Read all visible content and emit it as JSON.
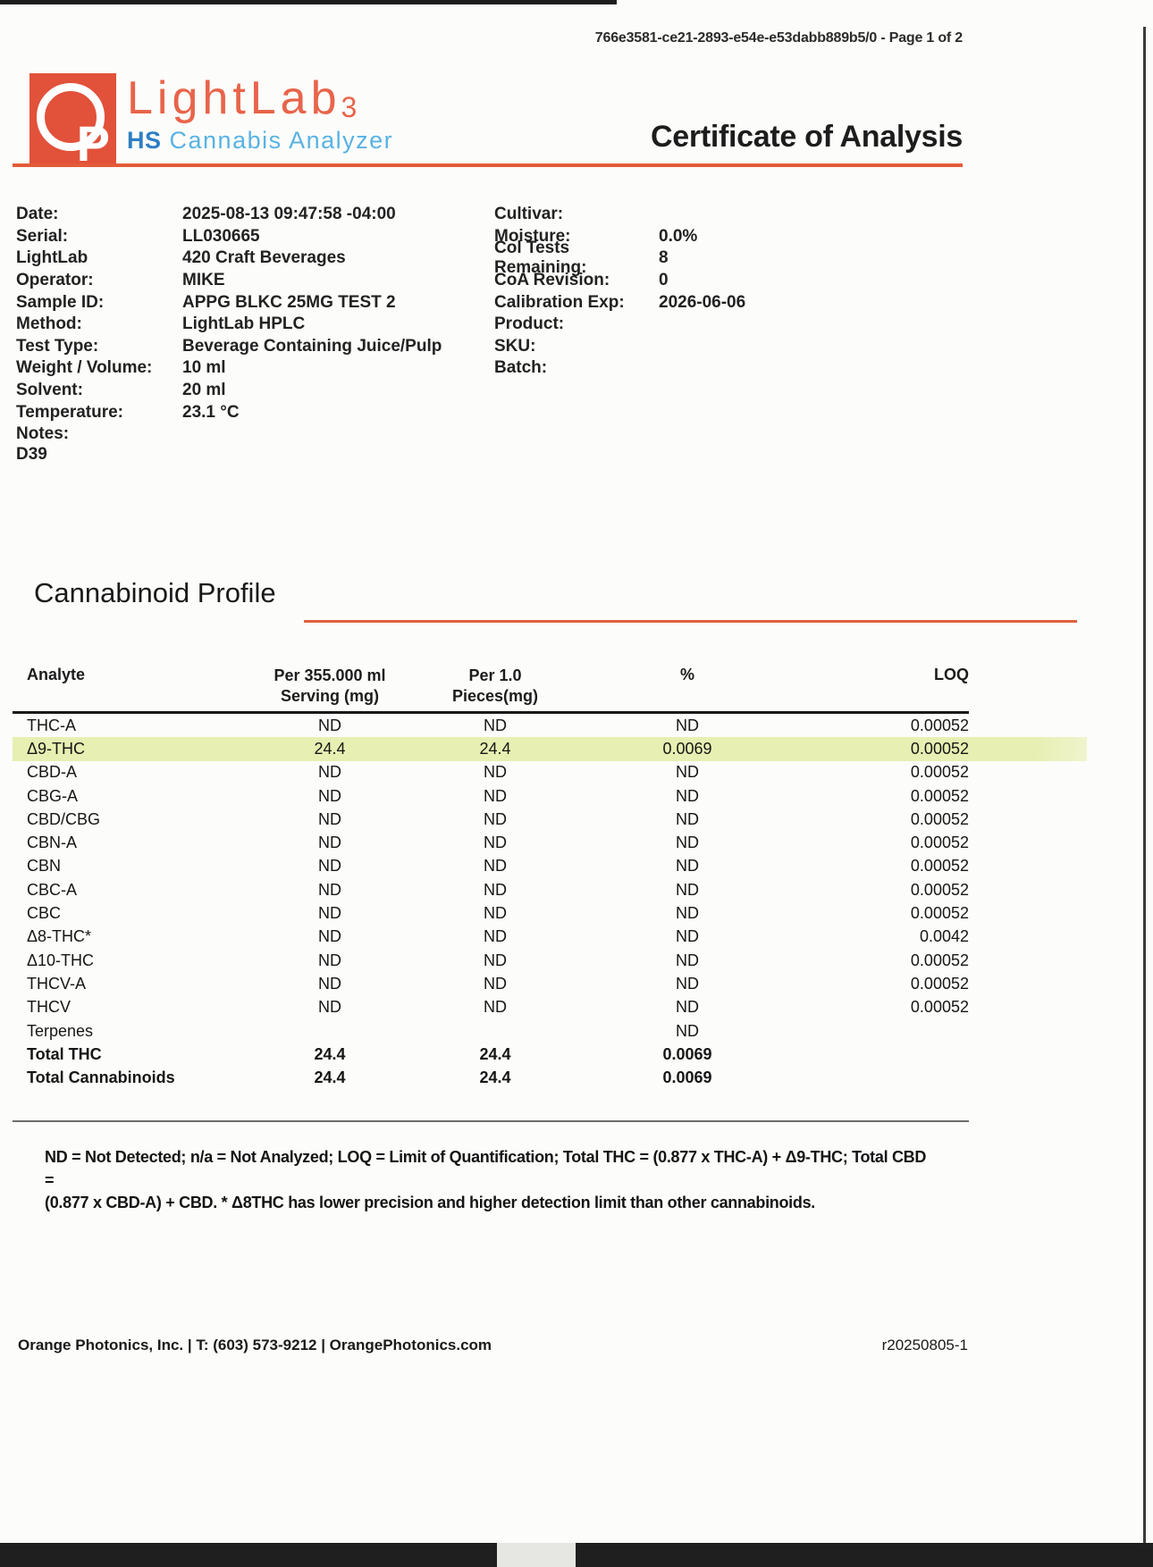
{
  "header": {
    "doc_ref": "766e3581-ce21-2893-e54e-e53dabb889b5/0 - Page 1 of 2",
    "title": "Certificate of Analysis"
  },
  "logo": {
    "brand": "LightLab",
    "model": "3",
    "monogram_p": "P",
    "line2_prefix": "HS",
    "line2_name": "Cannabis Analyzer",
    "colors": {
      "orange_square": "#e2513a",
      "brand_orange": "#e8644a",
      "rule_orange": "#e45a39",
      "hs_blue": "#2d7fc3",
      "analyzer_blue": "#58b2e4",
      "highlight_row": "#e7efb2"
    }
  },
  "meta_left": [
    {
      "label": "Date:",
      "value": "2025-08-13 09:47:58 -04:00"
    },
    {
      "label": "Serial:",
      "value": "LL030665"
    },
    {
      "label": "LightLab",
      "value": "420 Craft Beverages"
    },
    {
      "label": "Operator:",
      "value": "MIKE"
    },
    {
      "label": "Sample ID:",
      "value": "APPG BLKC 25MG TEST 2"
    },
    {
      "label": "Method:",
      "value": "LightLab HPLC"
    },
    {
      "label": "Test Type:",
      "value": "Beverage Containing Juice/Pulp"
    },
    {
      "label": "Weight / Volume:",
      "value": "10 ml"
    },
    {
      "label": "Solvent:",
      "value": "20 ml"
    },
    {
      "label": "Temperature:",
      "value": "23.1 °C"
    },
    {
      "label": "Notes:",
      "value": ""
    }
  ],
  "notes_value": "D39",
  "meta_right": [
    {
      "label": "Cultivar:",
      "value": ""
    },
    {
      "label": "Moisture:",
      "value": "0.0%"
    },
    {
      "label": "Col Tests Remaining:",
      "value": "8"
    },
    {
      "label": "CoA Revision:",
      "value": "0"
    },
    {
      "label": "Calibration Exp:",
      "value": "2026-06-06"
    },
    {
      "label": "Product:",
      "value": ""
    },
    {
      "label": "SKU:",
      "value": ""
    },
    {
      "label": "Batch:",
      "value": ""
    }
  ],
  "section_title": "Cannabinoid Profile",
  "table": {
    "headers": {
      "analyte": "Analyte",
      "serving_l1": "Per 355.000 ml",
      "serving_l2": "Serving (mg)",
      "pieces_l1": "Per 1.0",
      "pieces_l2": "Pieces(mg)",
      "percent": "%",
      "loq": "LOQ"
    },
    "rows": [
      {
        "analyte": "THC-A",
        "serving": "ND",
        "pieces": "ND",
        "percent": "ND",
        "loq": "0.00052",
        "highlight": false,
        "bold": false
      },
      {
        "analyte": "Δ9-THC",
        "serving": "24.4",
        "pieces": "24.4",
        "percent": "0.0069",
        "loq": "0.00052",
        "highlight": true,
        "bold": false
      },
      {
        "analyte": "CBD-A",
        "serving": "ND",
        "pieces": "ND",
        "percent": "ND",
        "loq": "0.00052",
        "highlight": false,
        "bold": false
      },
      {
        "analyte": "CBG-A",
        "serving": "ND",
        "pieces": "ND",
        "percent": "ND",
        "loq": "0.00052",
        "highlight": false,
        "bold": false
      },
      {
        "analyte": "CBD/CBG",
        "serving": "ND",
        "pieces": "ND",
        "percent": "ND",
        "loq": "0.00052",
        "highlight": false,
        "bold": false
      },
      {
        "analyte": "CBN-A",
        "serving": "ND",
        "pieces": "ND",
        "percent": "ND",
        "loq": "0.00052",
        "highlight": false,
        "bold": false
      },
      {
        "analyte": "CBN",
        "serving": "ND",
        "pieces": "ND",
        "percent": "ND",
        "loq": "0.00052",
        "highlight": false,
        "bold": false
      },
      {
        "analyte": "CBC-A",
        "serving": "ND",
        "pieces": "ND",
        "percent": "ND",
        "loq": "0.00052",
        "highlight": false,
        "bold": false
      },
      {
        "analyte": "CBC",
        "serving": "ND",
        "pieces": "ND",
        "percent": "ND",
        "loq": "0.00052",
        "highlight": false,
        "bold": false
      },
      {
        "analyte": "Δ8-THC*",
        "serving": "ND",
        "pieces": "ND",
        "percent": "ND",
        "loq": "0.0042",
        "highlight": false,
        "bold": false
      },
      {
        "analyte": "Δ10-THC",
        "serving": "ND",
        "pieces": "ND",
        "percent": "ND",
        "loq": "0.00052",
        "highlight": false,
        "bold": false
      },
      {
        "analyte": "THCV-A",
        "serving": "ND",
        "pieces": "ND",
        "percent": "ND",
        "loq": "0.00052",
        "highlight": false,
        "bold": false
      },
      {
        "analyte": "THCV",
        "serving": "ND",
        "pieces": "ND",
        "percent": "ND",
        "loq": "0.00052",
        "highlight": false,
        "bold": false
      },
      {
        "analyte": "Terpenes",
        "serving": "",
        "pieces": "",
        "percent": "ND",
        "loq": "",
        "highlight": false,
        "bold": false
      },
      {
        "analyte": "Total THC",
        "serving": "24.4",
        "pieces": "24.4",
        "percent": "0.0069",
        "loq": "",
        "highlight": false,
        "bold": true
      },
      {
        "analyte": "Total Cannabinoids",
        "serving": "24.4",
        "pieces": "24.4",
        "percent": "0.0069",
        "loq": "",
        "highlight": false,
        "bold": true
      }
    ]
  },
  "footnote": {
    "line1": "ND = Not Detected; n/a = Not Analyzed;  LOQ = Limit of Quantification; Total THC = (0.877 x THC-A) + Δ9-THC; Total CBD =",
    "line2": "(0.877 x CBD-A) + CBD. * Δ8THC has lower precision and higher detection limit than other cannabinoids."
  },
  "footer": {
    "company_line": "Orange Photonics, Inc. | T: (603) 573-9212 | OrangePhotonics.com",
    "revision": "r20250805-1"
  }
}
